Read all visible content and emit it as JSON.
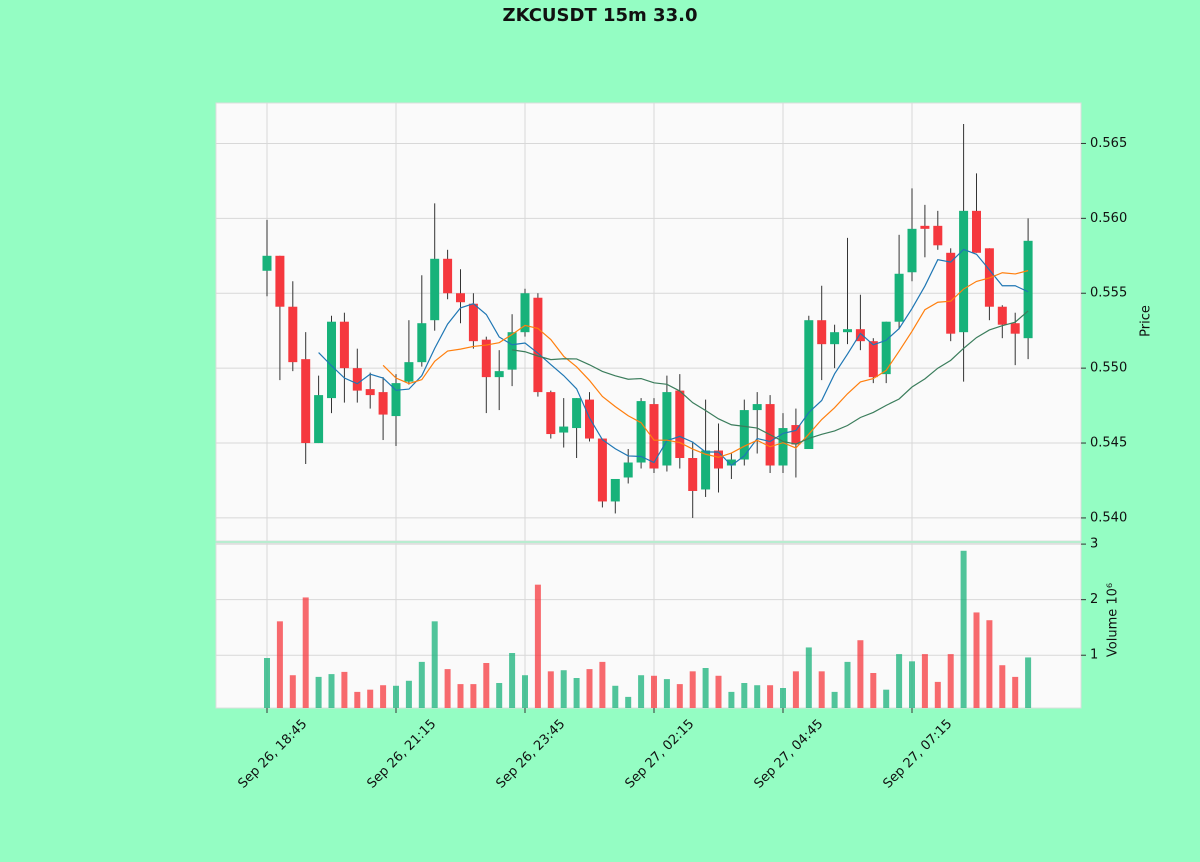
{
  "chart_data": {
    "type": "candlestick",
    "title": "ZKCUSDT 15m 33.0",
    "ylabel": "Price",
    "volume_label": "Volume  10⁶",
    "up_color": "#17b27a",
    "down_color": "#f5383e",
    "grid": true,
    "x": [
      "Sep 26, 18:45",
      null,
      null,
      null,
      null,
      null,
      null,
      null,
      null,
      null,
      "Sep 26, 21:15",
      null,
      null,
      null,
      null,
      null,
      null,
      null,
      null,
      null,
      "Sep 26, 23:45",
      null,
      null,
      null,
      null,
      null,
      null,
      null,
      null,
      null,
      "Sep 27, 02:15",
      null,
      null,
      null,
      null,
      null,
      null,
      null,
      null,
      null,
      "Sep 27, 04:45",
      null,
      null,
      null,
      null,
      null,
      null,
      null,
      null,
      null,
      "Sep 27, 07:15",
      null,
      null,
      null,
      null,
      null,
      null,
      null,
      null,
      null
    ],
    "open": [
      0.5565,
      0.5575,
      0.5541,
      0.5506,
      0.545,
      0.548,
      0.5531,
      0.55,
      0.5486,
      0.5484,
      0.5468,
      0.5491,
      0.5504,
      0.5532,
      0.5573,
      0.555,
      0.5543,
      0.5519,
      0.5494,
      0.5499,
      0.5524,
      0.5547,
      0.5484,
      0.5457,
      0.546,
      0.5479,
      0.5453,
      0.5411,
      0.5427,
      0.5437,
      0.5476,
      0.5435,
      0.5485,
      0.544,
      0.5419,
      0.5445,
      0.5435,
      0.5439,
      0.5472,
      0.5476,
      0.5435,
      0.5462,
      0.5446,
      0.5532,
      0.5516,
      0.5524,
      0.5526,
      0.5518,
      0.5496,
      0.5531,
      0.5564,
      0.5595,
      0.5595,
      0.5577,
      0.5524,
      0.5605,
      0.558,
      0.5541,
      0.553,
      0.552
    ],
    "high": [
      0.5599,
      0.5575,
      0.5558,
      0.5524,
      0.5495,
      0.5535,
      0.5537,
      0.5513,
      0.5497,
      0.5494,
      0.5496,
      0.5532,
      0.5562,
      0.561,
      0.5579,
      0.5566,
      0.555,
      0.5521,
      0.5512,
      0.5536,
      0.5553,
      0.555,
      0.5485,
      0.548,
      0.548,
      0.5484,
      0.5453,
      0.5426,
      0.5446,
      0.548,
      0.548,
      0.5495,
      0.5496,
      0.5451,
      0.5479,
      0.5463,
      0.5443,
      0.5479,
      0.5484,
      0.5482,
      0.547,
      0.5473,
      0.5535,
      0.5555,
      0.5529,
      0.5587,
      0.5549,
      0.552,
      0.5531,
      0.5589,
      0.562,
      0.5609,
      0.5605,
      0.558,
      0.5663,
      0.563,
      0.558,
      0.5542,
      0.5537,
      0.56
    ],
    "low": [
      0.5548,
      0.5492,
      0.5498,
      0.5436,
      0.545,
      0.547,
      0.5477,
      0.5477,
      0.5473,
      0.5452,
      0.5448,
      0.5489,
      0.5501,
      0.5525,
      0.5546,
      0.553,
      0.5513,
      0.547,
      0.5472,
      0.5488,
      0.5521,
      0.5481,
      0.5453,
      0.5447,
      0.544,
      0.5451,
      0.5407,
      0.5403,
      0.5423,
      0.5433,
      0.543,
      0.5431,
      0.5433,
      0.54,
      0.5414,
      0.5417,
      0.5426,
      0.5435,
      0.5443,
      0.543,
      0.543,
      0.5427,
      0.5446,
      0.5492,
      0.55,
      0.5516,
      0.5512,
      0.549,
      0.549,
      0.5526,
      0.5558,
      0.5574,
      0.5579,
      0.5518,
      0.5491,
      0.5577,
      0.5532,
      0.552,
      0.5502,
      0.5506
    ],
    "close": [
      0.5575,
      0.5541,
      0.5504,
      0.545,
      0.5482,
      0.5531,
      0.55,
      0.5485,
      0.5482,
      0.5469,
      0.549,
      0.5504,
      0.553,
      0.5573,
      0.555,
      0.5544,
      0.5518,
      0.5494,
      0.5498,
      0.5524,
      0.555,
      0.5484,
      0.5456,
      0.5461,
      0.548,
      0.5453,
      0.5411,
      0.5426,
      0.5437,
      0.5478,
      0.5433,
      0.5484,
      0.544,
      0.5418,
      0.5445,
      0.5433,
      0.5439,
      0.5472,
      0.5476,
      0.5435,
      0.546,
      0.5449,
      0.5532,
      0.5516,
      0.5524,
      0.5526,
      0.5518,
      0.5494,
      0.5531,
      0.5563,
      0.5593,
      0.5593,
      0.5582,
      0.5523,
      0.5605,
      0.5577,
      0.5541,
      0.5529,
      0.5523,
      0.5585
    ],
    "volume": [
      0.95,
      1.61,
      0.64,
      2.04,
      0.61,
      0.66,
      0.7,
      0.34,
      0.38,
      0.46,
      0.45,
      0.54,
      0.88,
      1.61,
      0.75,
      0.48,
      0.48,
      0.86,
      0.5,
      1.04,
      0.64,
      2.27,
      0.71,
      0.73,
      0.59,
      0.75,
      0.88,
      0.45,
      0.25,
      0.64,
      0.63,
      0.57,
      0.48,
      0.71,
      0.77,
      0.63,
      0.34,
      0.5,
      0.46,
      0.46,
      0.41,
      0.71,
      1.14,
      0.71,
      0.34,
      0.88,
      1.27,
      0.68,
      0.38,
      1.02,
      0.89,
      1.02,
      0.52,
      1.02,
      2.88,
      1.77,
      1.63,
      0.82,
      0.61,
      0.96
    ],
    "moving_averages": [
      {
        "period": 5,
        "color": "#1f77b4"
      },
      {
        "period": 10,
        "color": "#ff7f0e"
      },
      {
        "period": 20,
        "color": "#3b7d5c"
      }
    ],
    "ylim": [
      0.53846,
      0.5677
    ],
    "yticks": [
      {
        "value": 0.54,
        "label": "0.540"
      },
      0.545,
      {
        "value": 0.55,
        "label": "0.550"
      },
      0.555,
      {
        "value": 0.56,
        "label": "0.560"
      },
      0.565
    ],
    "volume_ylim": [
      0.05,
      3.02
    ],
    "volume_yticks": [
      1,
      2,
      3
    ]
  }
}
